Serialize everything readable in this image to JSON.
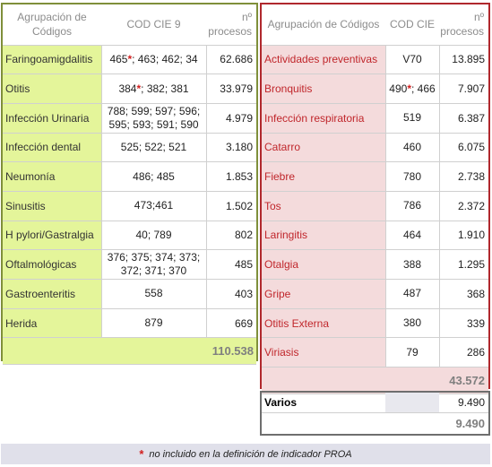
{
  "left": {
    "headers": {
      "group": "Agrupación de Códigos",
      "code": "COD CIE 9",
      "count": "nº procesos"
    },
    "rows": [
      {
        "name": "Faringoamigdalitis",
        "code_star": "465",
        "code_rest": "; 463; 462; 34",
        "count": "62.686"
      },
      {
        "name": "Otitis",
        "code_star": "384",
        "code_rest": "; 382; 381",
        "count": "33.979"
      },
      {
        "name": "Infección Urinaria",
        "code": "788; 599; 597; 596; 595; 593; 591; 590",
        "count": "4.979"
      },
      {
        "name": "Infección dental",
        "code": "525; 522; 521",
        "count": "3.180"
      },
      {
        "name": "Neumonía",
        "code": "486; 485",
        "count": "1.853"
      },
      {
        "name": "Sinusitis",
        "code": "473;461",
        "count": "1.502"
      },
      {
        "name": "H pylori/Gastralgia",
        "code": "40; 789",
        "count": "802"
      },
      {
        "name": "Oftalmológicas",
        "code": "376; 375; 374; 373; 372; 371; 370",
        "count": "485"
      },
      {
        "name": "Gastroenteritis",
        "code": "558",
        "count": "403"
      },
      {
        "name": "Herida",
        "code": "879",
        "count": "669"
      }
    ],
    "total": "110.538"
  },
  "right": {
    "headers": {
      "group": "Agrupación de Códigos",
      "code": "COD CIE",
      "count": "nº procesos"
    },
    "rows": [
      {
        "name": "Actividades preventivas",
        "code": "V70",
        "count": "13.895"
      },
      {
        "name": "Bronquitis",
        "code_star": "490",
        "code_rest": "; 466",
        "count": "7.907"
      },
      {
        "name": "Infección respiratoria",
        "code": "519",
        "count": "6.387"
      },
      {
        "name": "Catarro",
        "code": "460",
        "count": "6.075"
      },
      {
        "name": "Fiebre",
        "code": "780",
        "count": "2.738"
      },
      {
        "name": "Tos",
        "code": "786",
        "count": "2.372"
      },
      {
        "name": "Laringitis",
        "code": "464",
        "count": "1.910"
      },
      {
        "name": "Otalgia",
        "code": "388",
        "count": "1.295"
      },
      {
        "name": "Gripe",
        "code": "487",
        "count": "368"
      },
      {
        "name": "Otitis Externa",
        "code": "380",
        "count": "339"
      },
      {
        "name": "Viriasis",
        "code": "79",
        "count": "286"
      }
    ],
    "total": "43.572"
  },
  "varios": {
    "label": "Varios",
    "count": "9.490",
    "total": "9.490"
  },
  "footnote": {
    "star": "*",
    "text": "no incluido en la definición de indicador PROA"
  },
  "colors": {
    "left_fill": "#e4f59a",
    "right_fill": "#f4dbdc",
    "left_border": "#7f8f3a",
    "right_border": "#b0282d",
    "star": "#d21e1e"
  }
}
